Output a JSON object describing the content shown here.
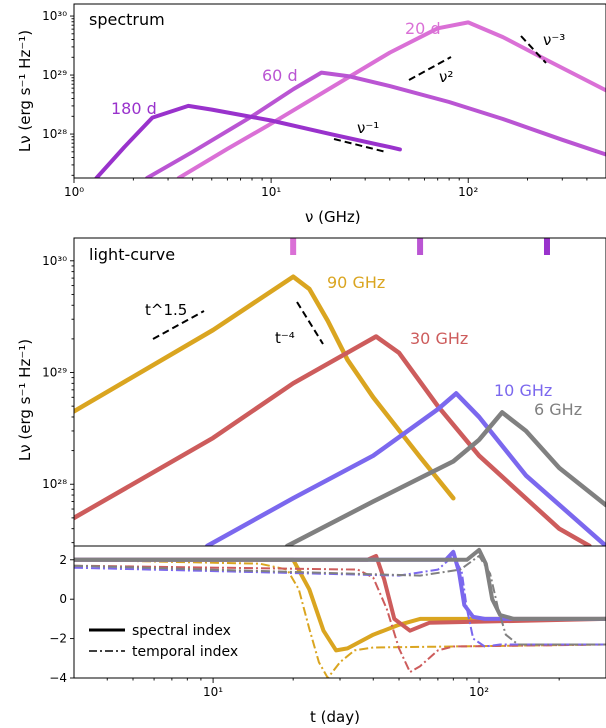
{
  "chart_data": [
    {
      "panel": "spectrum",
      "type": "line",
      "title": "spectrum",
      "xlabel": "ν (GHz)",
      "ylabel": "Lν (erg s⁻¹ Hz⁻¹)",
      "xscale": "log",
      "yscale": "log",
      "xlim": [
        1,
        500
      ],
      "ylim": [
        1.8e+27,
        1.6e+30
      ],
      "xticks": [
        "10⁰",
        "10¹",
        "10²"
      ],
      "yticks": [
        "10²⁸",
        "10²⁹",
        "10³⁰"
      ],
      "series": [
        {
          "name": "20 d",
          "color": "#da70d6",
          "x": [
            3.4,
            6,
            10,
            20,
            40,
            70,
            100,
            150,
            250,
            500
          ],
          "y": [
            1.8e+27,
            5.6e+27,
            1.5e+28,
            6e+28,
            2.4e+29,
            6.2e+29,
            7.8e+29,
            4.4e+29,
            1.8e+29,
            5.5e+28
          ]
        },
        {
          "name": "60 d",
          "color": "#ba55d3",
          "x": [
            2.35,
            4,
            8,
            13,
            18,
            25,
            40,
            80,
            150,
            300,
            500
          ],
          "y": [
            1.8e+27,
            5e+27,
            2e+28,
            5.8e+28,
            1.1e+29,
            9.5e+28,
            6.5e+28,
            3.5e+28,
            1.8e+28,
            8e+27,
            4.5e+27
          ]
        },
        {
          "name": "180 d",
          "color": "#9932cc",
          "x": [
            1.3,
            1.8,
            2.5,
            3.8,
            5,
            10,
            20,
            40,
            45
          ],
          "y": [
            1.8e+27,
            6e+27,
            1.9e+28,
            3e+28,
            2.6e+28,
            1.7e+28,
            1e+28,
            6e+27,
            5.5e+27
          ]
        }
      ],
      "annotations": [
        "ν⁻¹",
        "ν²",
        "ν⁻³"
      ]
    },
    {
      "panel": "light-curve",
      "type": "line",
      "title": "light-curve",
      "xlabel": "t (day)",
      "ylabel": "Lν (erg s⁻¹ Hz⁻¹)",
      "xscale": "log",
      "yscale": "log",
      "xlim": [
        3,
        300
      ],
      "ylim": [
        2.8e+27,
        1.6e+30
      ],
      "yticks": [
        "10²⁸",
        "10²⁹",
        "10³⁰"
      ],
      "series": [
        {
          "name": "90 GHz",
          "color": "#daa520",
          "x": [
            3,
            10,
            20,
            23,
            27,
            32,
            40,
            60,
            80
          ],
          "y": [
            4.5e+28,
            2.4e+29,
            7.2e+29,
            5.6e+29,
            2.9e+29,
            1.3e+29,
            6e+28,
            1.75e+28,
            7.5e+27
          ]
        },
        {
          "name": "30 GHz",
          "color": "#cd5c5c",
          "x": [
            3,
            10,
            20,
            35,
            41,
            50,
            70,
            100,
            200,
            260
          ],
          "y": [
            5e+27,
            2.6e+28,
            8e+28,
            1.7e+29,
            2.1e+29,
            1.5e+29,
            5e+28,
            1.8e+28,
            4e+27,
            2.8e+27
          ]
        },
        {
          "name": "10 GHz",
          "color": "#7b68ee",
          "x": [
            9.5,
            20,
            40,
            70,
            82,
            100,
            150,
            300
          ],
          "y": [
            2.8e+27,
            7.5e+27,
            1.8e+28,
            4.7e+28,
            6.5e+28,
            4e+28,
            1.2e+28,
            2.8e+27
          ]
        },
        {
          "name": "6 GHz",
          "color": "#808080",
          "x": [
            19,
            40,
            80,
            100,
            122,
            150,
            200,
            300
          ],
          "y": [
            2.8e+27,
            7e+27,
            1.6e+28,
            2.5e+28,
            4.4e+28,
            3e+28,
            1.4e+28,
            6.5e+27
          ]
        }
      ],
      "annotations": [
        "t^1.5",
        "t⁻⁴"
      ],
      "markers": [
        {
          "t": 20,
          "color": "#da70d6"
        },
        {
          "t": 60,
          "color": "#ba55d3"
        },
        {
          "t": 180,
          "color": "#9932cc"
        }
      ]
    },
    {
      "panel": "index",
      "type": "line",
      "xlabel": "t (day)",
      "xscale": "log",
      "xlim": [
        3,
        300
      ],
      "ylim": [
        -4,
        2.7
      ],
      "xticks": [
        "10¹",
        "10²"
      ],
      "yticks": [
        "2",
        "0",
        "−2",
        "−4"
      ],
      "legend": {
        "location": "lower-left",
        "entries": [
          "spectral index",
          "temporal index"
        ]
      },
      "series": [
        {
          "name": "90 GHz spectral",
          "color": "#daa520",
          "style": "solid",
          "x": [
            3,
            20,
            23,
            26,
            29,
            32,
            40,
            50,
            60,
            300
          ],
          "y": [
            2,
            2,
            0.5,
            -1.6,
            -2.6,
            -2.5,
            -1.8,
            -1.3,
            -1,
            -1
          ]
        },
        {
          "name": "90 GHz temporal",
          "color": "#daa520",
          "style": "dashdot",
          "x": [
            3,
            15,
            19,
            21,
            23,
            25,
            27,
            30,
            34,
            40,
            300
          ],
          "y": [
            2,
            1.8,
            1.5,
            0.5,
            -1.5,
            -3.2,
            -4,
            -3.2,
            -2.6,
            -2.45,
            -2.3
          ]
        },
        {
          "name": "30 GHz spectral",
          "color": "#cd5c5c",
          "style": "solid",
          "x": [
            3,
            38,
            41,
            44,
            48,
            55,
            65,
            300
          ],
          "y": [
            2,
            2,
            2.2,
            1,
            -1,
            -1.6,
            -1.2,
            -1
          ]
        },
        {
          "name": "30 GHz temporal",
          "color": "#cd5c5c",
          "style": "dashdot",
          "x": [
            3,
            35,
            40,
            45,
            50,
            55,
            60,
            70,
            80,
            300
          ],
          "y": [
            1.7,
            1.5,
            1.1,
            -0.5,
            -2.5,
            -3.7,
            -3.4,
            -2.6,
            -2.4,
            -2.3
          ]
        },
        {
          "name": "10 GHz spectral",
          "color": "#7b68ee",
          "style": "solid",
          "x": [
            3,
            75,
            80,
            84,
            88,
            95,
            105,
            120,
            300
          ],
          "y": [
            2,
            2,
            2.4,
            1.4,
            -0.3,
            -0.9,
            -1,
            -1,
            -1
          ]
        },
        {
          "name": "10 GHz temporal",
          "color": "#7b68ee",
          "style": "dashdot",
          "x": [
            3,
            50,
            70,
            80,
            86,
            90,
            95,
            105,
            120,
            300
          ],
          "y": [
            1.6,
            1.2,
            1.5,
            2.2,
            1.4,
            -0.5,
            -2,
            -2.4,
            -2.3,
            -2.3
          ]
        },
        {
          "name": "6 GHz spectral",
          "color": "#808080",
          "style": "solid",
          "x": [
            3,
            90,
            100,
            106,
            112,
            120,
            135,
            160,
            300
          ],
          "y": [
            2,
            2,
            2.5,
            1.8,
            0,
            -0.8,
            -1,
            -1,
            -1
          ]
        },
        {
          "name": "6 GHz temporal",
          "color": "#808080",
          "style": "dashdot",
          "x": [
            3,
            60,
            85,
            100,
            110,
            118,
            126,
            140,
            170,
            300
          ],
          "y": [
            1.7,
            1.2,
            1.5,
            2.2,
            1.3,
            -0.5,
            -1.8,
            -2.3,
            -2.3,
            -2.3
          ]
        }
      ]
    }
  ]
}
